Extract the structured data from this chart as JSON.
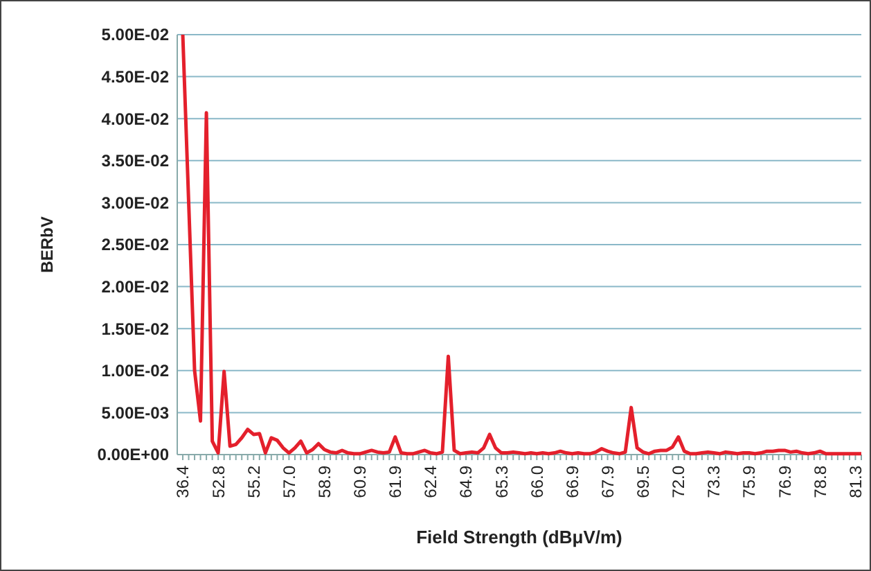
{
  "chart_data": {
    "type": "line",
    "xlabel": "Field Strength (dBμV/m)",
    "ylabel": "BERbV",
    "categories": [
      "36.4",
      null,
      null,
      null,
      null,
      null,
      "52.8",
      null,
      null,
      null,
      null,
      null,
      "55.2",
      null,
      null,
      null,
      null,
      null,
      "57.0",
      null,
      null,
      null,
      null,
      null,
      "58.9",
      null,
      null,
      null,
      null,
      null,
      "60.9",
      null,
      null,
      null,
      null,
      null,
      "61.9",
      null,
      null,
      null,
      null,
      null,
      "62.4",
      null,
      null,
      null,
      null,
      null,
      "64.9",
      null,
      null,
      null,
      null,
      null,
      "65.3",
      null,
      null,
      null,
      null,
      null,
      "66.0",
      null,
      null,
      null,
      null,
      null,
      "66.9",
      null,
      null,
      null,
      null,
      null,
      "67.9",
      null,
      null,
      null,
      null,
      null,
      "69.5",
      null,
      null,
      null,
      null,
      null,
      "72.0",
      null,
      null,
      null,
      null,
      null,
      "73.3",
      null,
      null,
      null,
      null,
      null,
      "75.9",
      null,
      null,
      null,
      null,
      null,
      "76.9",
      null,
      null,
      null,
      null,
      null,
      "78.8",
      null,
      null,
      null,
      null,
      null,
      "81.3",
      null
    ],
    "series": [
      {
        "color": "#e4202c",
        "values": [
          0.05,
          0.03,
          0.01,
          0.004,
          0.0407,
          0.0016,
          0.0002,
          0.0099,
          0.001,
          0.0012,
          0.002,
          0.003,
          0.0024,
          0.0025,
          0.0002,
          0.002,
          0.0017,
          0.0008,
          0.0002,
          0.0008,
          0.0016,
          0.0002,
          0.0006,
          0.0013,
          0.0006,
          0.0003,
          0.0002,
          0.0005,
          0.0002,
          0.0001,
          0.0001,
          0.0003,
          0.0005,
          0.0003,
          0.0002,
          0.0003,
          0.0021,
          0.0002,
          0.0001,
          0.0001,
          0.0003,
          0.0005,
          0.0002,
          0.0001,
          0.0003,
          0.0117,
          0.0005,
          0.0001,
          0.0002,
          0.0003,
          0.0002,
          0.0008,
          0.0024,
          0.0008,
          0.0002,
          0.0002,
          0.0003,
          0.0002,
          0.0001,
          0.0002,
          0.0001,
          0.0002,
          0.0001,
          0.0002,
          0.0004,
          0.0002,
          0.0001,
          0.0002,
          0.0001,
          0.0001,
          0.0003,
          0.0007,
          0.0004,
          0.0002,
          0.0001,
          0.0003,
          0.0056,
          0.0008,
          0.0003,
          0.0001,
          0.0004,
          0.0005,
          0.0005,
          0.0009,
          0.0021,
          0.0004,
          0.0001,
          0.0001,
          0.0002,
          0.0003,
          0.0002,
          0.0001,
          0.0003,
          0.0002,
          0.0001,
          0.0002,
          0.0002,
          0.0001,
          0.0002,
          0.0004,
          0.0004,
          0.0005,
          0.0005,
          0.0003,
          0.0004,
          0.0002,
          0.0001,
          0.0002,
          0.0004,
          0.0001,
          0.0001,
          0.0001,
          0.0001,
          0.0001,
          0.0001,
          0.0001
        ]
      }
    ],
    "ylim": [
      0,
      0.05
    ],
    "yticks": [
      {
        "value": 0,
        "label": "0.00E+00"
      },
      {
        "value": 0.005,
        "label": "5.00E-03"
      },
      {
        "value": 0.01,
        "label": "1.00E-02"
      },
      {
        "value": 0.015,
        "label": "1.50E-02"
      },
      {
        "value": 0.02,
        "label": "2.00E-02"
      },
      {
        "value": 0.025,
        "label": "2.50E-02"
      },
      {
        "value": 0.03,
        "label": "3.00E-02"
      },
      {
        "value": 0.035,
        "label": "3.50E-02"
      },
      {
        "value": 0.04,
        "label": "4.00E-02"
      },
      {
        "value": 0.045,
        "label": "4.50E-02"
      },
      {
        "value": 0.05,
        "label": "5.00E-02"
      }
    ],
    "grid": "y",
    "marker": "none",
    "line_style": "solid"
  }
}
